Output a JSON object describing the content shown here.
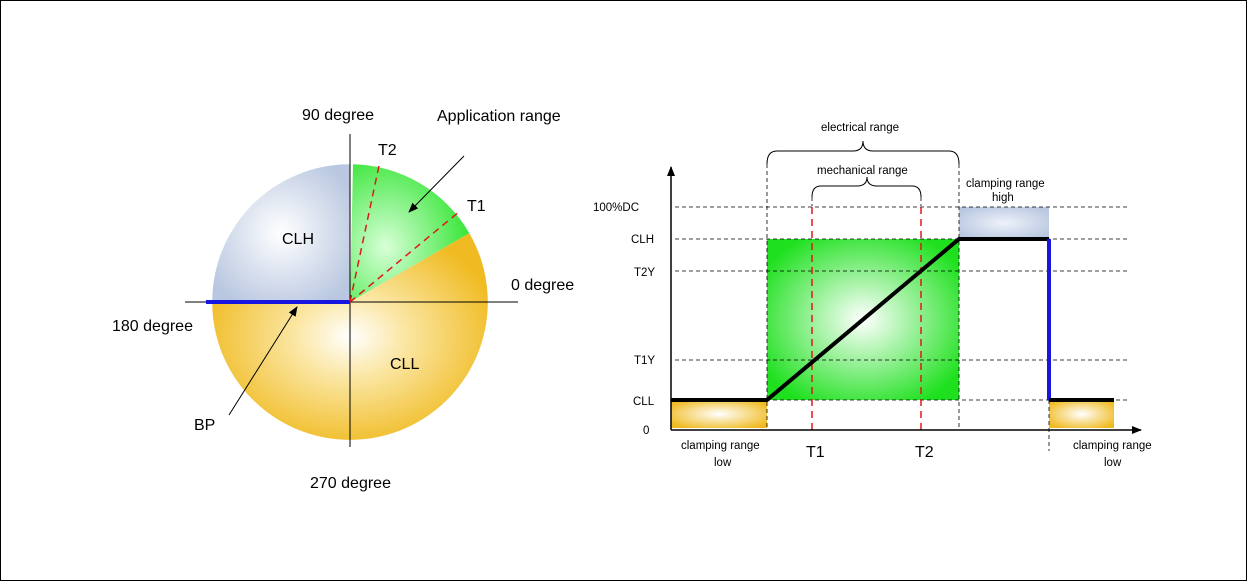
{
  "colors": {
    "clh": "#c6d1e6",
    "cll": "#f2c12a",
    "application": "#22e222",
    "blue": "#1616e0",
    "red_dash": "#e01818",
    "black": "#000000"
  },
  "left_diagram": {
    "labels": {
      "deg90": "90 degree",
      "deg0": "0 degree",
      "deg180": "180 degree",
      "deg270": "270 degree",
      "application_range": "Application range",
      "t2": "T2",
      "t1": "T1",
      "clh": "CLH",
      "cll": "CLL",
      "bp": "BP"
    }
  },
  "right_diagram": {
    "labels": {
      "electrical_range": "electrical range",
      "mechanical_range": "mechanical range",
      "clamping_high_line1": "clamping range",
      "clamping_high_line2": "high",
      "clamping_low_left_line1": "clamping range",
      "clamping_low_left_line2": "low",
      "clamping_low_right_line1": "clamping range",
      "clamping_low_right_line2": "low",
      "t1": "T1",
      "t2": "T2"
    },
    "y_ticks": [
      "100%DC",
      "CLH",
      "T2Y",
      "T1Y",
      "CLL",
      "0"
    ]
  }
}
